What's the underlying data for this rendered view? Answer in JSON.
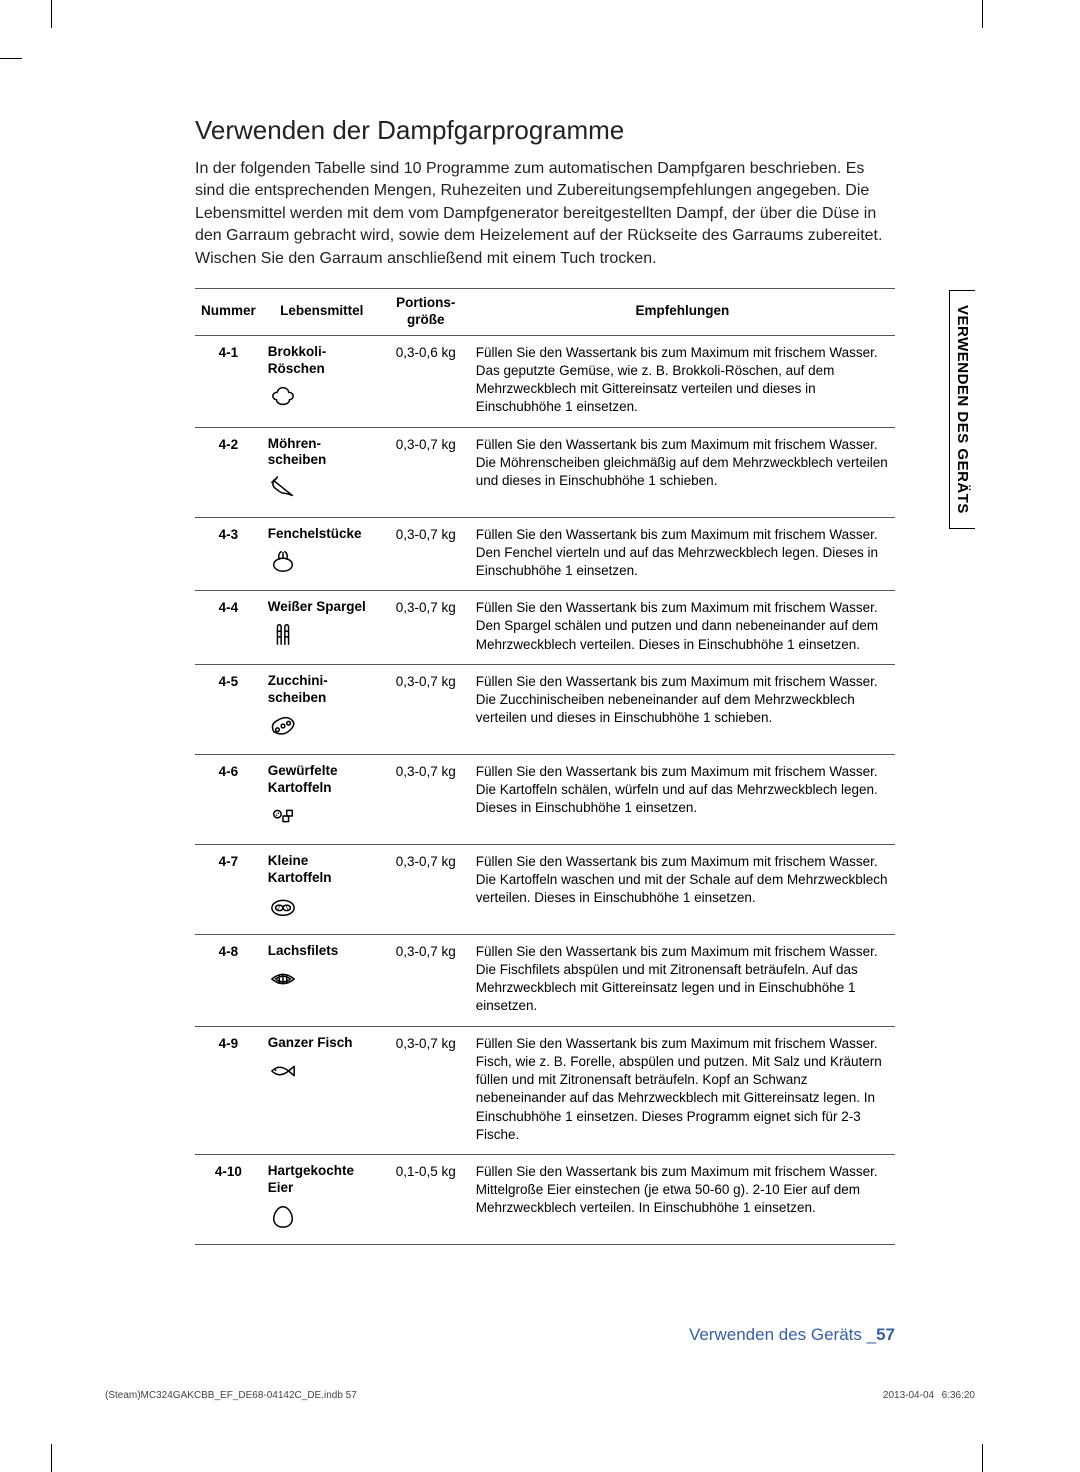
{
  "title": "Verwenden der Dampfgarprogramme",
  "intro": "In der folgenden Tabelle sind 10 Programme zum automatischen Dampfgaren beschrieben. Es sind die entsprechenden Mengen, Ruhezeiten und Zubereitungsempfehlungen angegeben. Die Lebensmittel werden mit dem vom Dampfgenerator bereitgestellten Dampf, der über die Düse in den Garraum gebracht wird, sowie dem Heizelement auf der Rückseite des Garraums zubereitet. Wischen Sie den Garraum anschließend mit einem Tuch trocken.",
  "headers": {
    "num": "Nummer",
    "food": "Lebensmittel",
    "size1": "Portions-",
    "size2": "größe",
    "rec": "Empfehlungen"
  },
  "rows": [
    {
      "num": "4-1",
      "food1": "Brokkoli-",
      "food2": "Röschen",
      "icon": "broccoli",
      "size": "0,3-0,6 kg",
      "rec": "Füllen Sie den Wassertank bis zum Maximum mit frischem Wasser. Das geputzte Gemüse, wie z. B. Brokkoli-Röschen, auf dem Mehrzweckblech mit Gittereinsatz verteilen und dieses in Einschubhöhe 1 einsetzen."
    },
    {
      "num": "4-2",
      "food1": "Möhren-",
      "food2": "scheiben",
      "icon": "carrot",
      "size": "0,3-0,7 kg",
      "rec": "Füllen Sie den Wassertank bis zum Maximum mit frischem Wasser. Die Möhrenscheiben gleichmäßig auf dem Mehrzweckblech verteilen und dieses in Einschubhöhe 1 schieben."
    },
    {
      "num": "4-3",
      "food1": "Fenchelstücke",
      "food2": "",
      "icon": "fennel",
      "size": "0,3-0,7 kg",
      "rec": "Füllen Sie den Wassertank bis zum Maximum mit frischem Wasser. Den Fenchel vierteln und auf das Mehrzweckblech legen. Dieses in Einschubhöhe 1 einsetzen."
    },
    {
      "num": "4-4",
      "food1": "Weißer Spargel",
      "food2": "",
      "icon": "asparagus",
      "size": "0,3-0,7 kg",
      "rec": "Füllen Sie den Wassertank bis zum Maximum mit frischem Wasser. Den Spargel schälen und putzen und dann nebeneinander auf dem Mehrzweckblech verteilen. Dieses in Einschubhöhe 1 einsetzen."
    },
    {
      "num": "4-5",
      "food1": "Zucchini-",
      "food2": "scheiben",
      "icon": "zucchini",
      "size": "0,3-0,7 kg",
      "rec": "Füllen Sie den Wassertank bis zum Maximum mit frischem Wasser. Die Zucchinischeiben nebeneinander auf dem Mehrzweckblech verteilen und dieses in Einschubhöhe 1 schieben."
    },
    {
      "num": "4-6",
      "food1": "Gewürfelte",
      "food2": "Kartoffeln",
      "icon": "diced",
      "size": "0,3-0,7 kg",
      "rec": "Füllen Sie den Wassertank bis zum Maximum mit frischem Wasser. Die Kartoffeln schälen, würfeln und auf das Mehrzweckblech legen. Dieses in Einschubhöhe 1 einsetzen."
    },
    {
      "num": "4-7",
      "food1": "Kleine",
      "food2": "Kartoffeln",
      "icon": "small-pot",
      "size": "0,3-0,7 kg",
      "rec": "Füllen Sie den Wassertank bis zum Maximum mit frischem Wasser. Die Kartoffeln waschen und mit der Schale auf dem Mehrzweckblech verteilen. Dieses in Einschubhöhe 1 einsetzen."
    },
    {
      "num": "4-8",
      "food1": "Lachsfilets",
      "food2": "",
      "icon": "fillet",
      "size": "0,3-0,7 kg",
      "rec": "Füllen Sie den Wassertank bis zum Maximum mit frischem Wasser. Die Fischfilets abspülen und mit Zitronensaft beträufeln. Auf das Mehrzweckblech mit Gittereinsatz legen und in Einschubhöhe 1 einsetzen."
    },
    {
      "num": "4-9",
      "food1": "Ganzer Fisch",
      "food2": "",
      "icon": "fish",
      "size": "0,3-0,7 kg",
      "rec": "Füllen Sie den Wassertank bis zum Maximum mit frischem Wasser. Fisch, wie z. B. Forelle, abspülen und putzen. Mit Salz und Kräutern füllen und mit Zitronensaft beträufeln. Kopf an Schwanz nebeneinander auf das Mehrzweckblech mit Gittereinsatz legen. In Einschubhöhe 1 einsetzen. Dieses Programm eignet sich für 2-3 Fische."
    },
    {
      "num": "4-10",
      "food1": "Hartgekochte",
      "food2": "Eier",
      "icon": "egg",
      "size": "0,1-0,5 kg",
      "rec": "Füllen Sie den Wassertank bis zum Maximum mit frischem Wasser. Mittelgroße Eier einstechen (je etwa 50-60 g). 2-10 Eier auf dem Mehrzweckblech verteilen. In Einschubhöhe 1 einsetzen."
    }
  ],
  "sideTab": "VERWENDEN DES GERÄTS",
  "footer": {
    "section": "Verwenden des Geräts _",
    "page": "57"
  },
  "imprintLeft": "(Steam)MC324GAKCBB_EF_DE68-04142C_DE.indb   57",
  "imprintRight": "2013-04-04     6:36:20"
}
